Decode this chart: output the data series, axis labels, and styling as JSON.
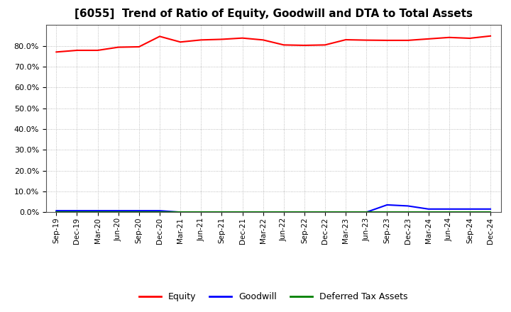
{
  "title": "[6055]  Trend of Ratio of Equity, Goodwill and DTA to Total Assets",
  "x_labels": [
    "Sep-19",
    "Dec-19",
    "Mar-20",
    "Jun-20",
    "Sep-20",
    "Dec-20",
    "Mar-21",
    "Jun-21",
    "Sep-21",
    "Dec-21",
    "Mar-22",
    "Jun-22",
    "Sep-22",
    "Dec-22",
    "Mar-23",
    "Jun-23",
    "Sep-23",
    "Dec-23",
    "Mar-24",
    "Jun-24",
    "Sep-24",
    "Dec-24"
  ],
  "equity": [
    0.77,
    0.778,
    0.778,
    0.793,
    0.795,
    0.845,
    0.818,
    0.828,
    0.831,
    0.837,
    0.828,
    0.804,
    0.802,
    0.804,
    0.829,
    0.827,
    0.826,
    0.826,
    0.833,
    0.84,
    0.836,
    0.847
  ],
  "goodwill": [
    0.007,
    0.007,
    0.007,
    0.007,
    0.007,
    0.007,
    0.0,
    0.0,
    0.0,
    0.0,
    0.0,
    0.0,
    0.0,
    0.0,
    0.0,
    0.0,
    0.035,
    0.03,
    0.015,
    0.015,
    0.015,
    0.015
  ],
  "dta": [
    0.0,
    0.0,
    0.0,
    0.0,
    0.0,
    0.0,
    0.0,
    0.0,
    0.0,
    0.0,
    0.0,
    0.0,
    0.0,
    0.0,
    0.0,
    0.0,
    0.0,
    0.0,
    0.0,
    0.0,
    0.0,
    0.0
  ],
  "equity_color": "#FF0000",
  "goodwill_color": "#0000FF",
  "dta_color": "#008000",
  "background_color": "#FFFFFF",
  "grid_color": "#AAAAAA",
  "ylim": [
    0.0,
    0.9
  ],
  "yticks": [
    0.0,
    0.1,
    0.2,
    0.3,
    0.4,
    0.5,
    0.6,
    0.7,
    0.8
  ],
  "legend_labels": [
    "Equity",
    "Goodwill",
    "Deferred Tax Assets"
  ]
}
